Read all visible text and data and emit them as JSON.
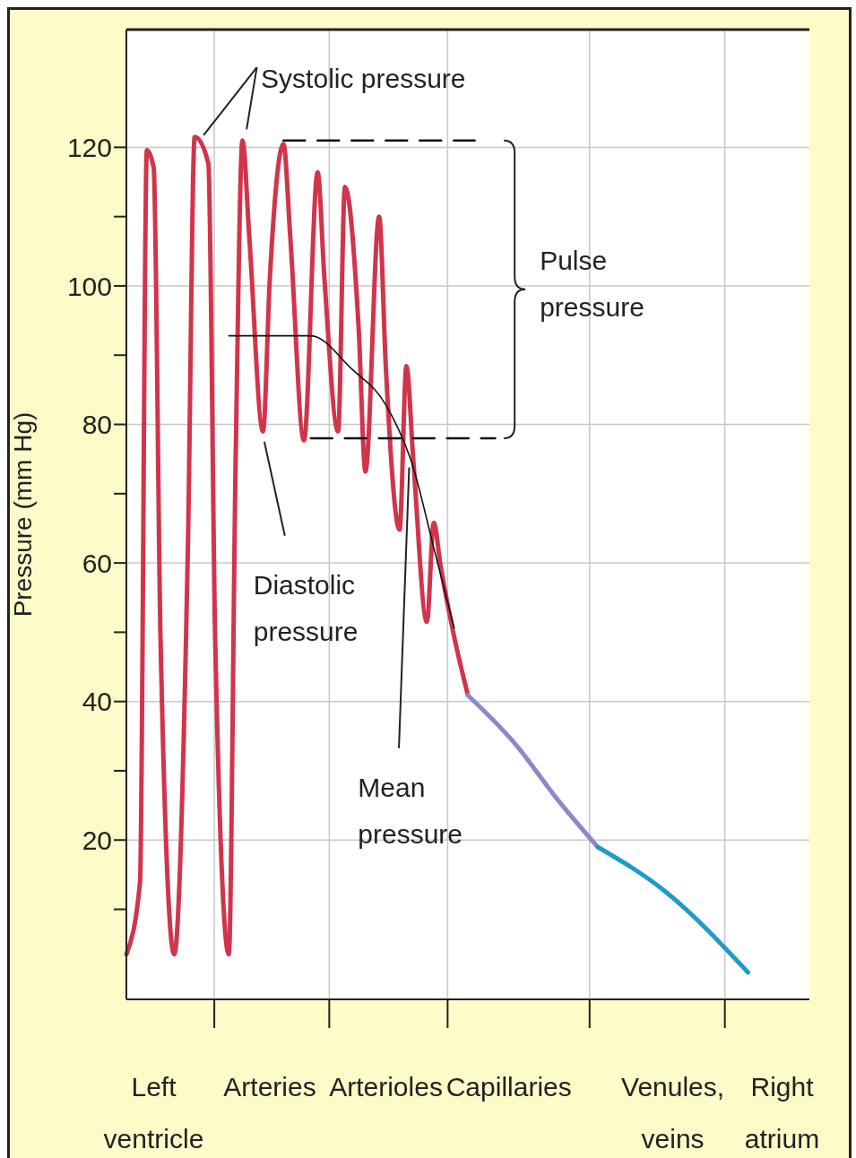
{
  "chart_data": {
    "type": "line",
    "ylabel": "Pressure (mm Hg)",
    "categories": [
      null,
      null,
      null,
      null,
      "Left ventricle",
      null,
      null,
      null,
      null,
      null,
      null,
      null,
      null,
      null,
      null,
      null,
      null,
      null,
      null,
      null,
      null,
      "Arteries",
      null,
      null,
      null,
      null,
      null,
      null,
      null,
      null,
      null,
      null,
      null,
      null,
      null,
      null,
      null,
      null,
      "Arterioles",
      null,
      null,
      null,
      null,
      null,
      null,
      null,
      null,
      null,
      null,
      null,
      null,
      null,
      null,
      null,
      null,
      null,
      "Capillaries",
      null,
      null,
      null,
      null,
      null,
      null,
      null,
      null,
      null,
      null,
      null,
      null,
      null,
      null,
      null,
      null,
      null,
      null,
      null,
      null,
      null,
      null,
      null,
      "Venules, veins",
      null,
      null,
      null,
      null,
      null,
      null,
      null,
      null,
      null,
      null,
      null,
      null,
      null,
      null,
      null,
      "Right atrium",
      null,
      null,
      null,
      null
    ],
    "ylim": [
      -3,
      137
    ],
    "yticks": [
      {
        "value": 10,
        "label": null
      },
      20,
      {
        "value": 30,
        "label": null
      },
      40,
      {
        "value": 50,
        "label": null
      },
      60,
      {
        "value": 70,
        "label": null
      },
      80,
      {
        "value": 90,
        "label": null
      },
      100,
      {
        "value": 110,
        "label": null
      },
      120
    ],
    "grid": true,
    "marker": "none",
    "line_style": "solid",
    "series": [
      {
        "color": "#d1344b",
        "values": [
          3.5,
          null,
          14,
          119.6,
          117,
          49,
          null,
          3.5,
          null,
          62,
          121.5,
          null,
          117.7,
          49,
          null,
          3.5,
          75,
          121,
          107,
          null,
          79,
          101,
          null,
          120.5,
          107,
          null,
          77.7,
          null,
          116.4,
          101,
          null,
          79,
          114.3,
          null,
          94,
          73.2,
          null,
          110,
          88,
          null,
          64.8,
          88.4,
          75,
          null,
          51.5,
          65.8,
          59.6,
          null,
          49.3,
          null,
          40.9,
          null,
          null,
          null,
          null,
          null,
          null,
          null,
          null,
          null,
          null,
          null,
          null,
          null,
          null,
          null,
          null,
          null,
          null,
          null,
          null,
          null,
          null,
          null,
          null,
          null,
          null,
          null,
          null,
          null,
          null,
          null,
          null,
          null,
          null,
          null,
          null,
          null,
          null,
          null,
          null,
          null,
          null,
          null,
          null,
          null,
          null,
          null,
          null,
          null,
          null
        ]
      },
      {
        "color": "#8c89c8",
        "values": [
          null,
          null,
          null,
          null,
          null,
          null,
          null,
          null,
          null,
          null,
          null,
          null,
          null,
          null,
          null,
          null,
          null,
          null,
          null,
          null,
          null,
          null,
          null,
          null,
          null,
          null,
          null,
          null,
          null,
          null,
          null,
          null,
          null,
          null,
          null,
          null,
          null,
          null,
          null,
          null,
          null,
          null,
          null,
          null,
          null,
          null,
          null,
          null,
          null,
          null,
          40.9,
          null,
          null,
          null,
          null,
          null,
          null,
          33.8,
          null,
          null,
          null,
          null,
          null,
          26,
          null,
          null,
          null,
          null,
          null,
          19,
          null,
          null,
          null,
          null,
          null,
          null,
          null,
          null,
          null,
          null,
          null,
          null,
          null,
          null,
          null,
          null,
          null,
          null,
          null,
          null,
          null,
          null,
          null,
          null,
          null,
          null,
          null,
          null,
          null,
          null,
          null
        ]
      },
      {
        "color": "#1e9cc6",
        "values": [
          null,
          null,
          null,
          null,
          null,
          null,
          null,
          null,
          null,
          null,
          null,
          null,
          null,
          null,
          null,
          null,
          null,
          null,
          null,
          null,
          null,
          null,
          null,
          null,
          null,
          null,
          null,
          null,
          null,
          null,
          null,
          null,
          null,
          null,
          null,
          null,
          null,
          null,
          null,
          null,
          null,
          null,
          null,
          null,
          null,
          null,
          null,
          null,
          null,
          null,
          null,
          null,
          null,
          null,
          null,
          null,
          null,
          null,
          null,
          null,
          null,
          null,
          null,
          null,
          null,
          null,
          null,
          null,
          null,
          19,
          null,
          null,
          null,
          null,
          null,
          null,
          null,
          null,
          null,
          12.5,
          null,
          null,
          null,
          null,
          null,
          null,
          null,
          null,
          null,
          null,
          null,
          0.9,
          null,
          null,
          null,
          null,
          null,
          null,
          null,
          null,
          null
        ]
      },
      {
        "color": "#111111",
        "values": [
          null,
          null,
          null,
          null,
          null,
          null,
          null,
          null,
          null,
          null,
          null,
          null,
          null,
          null,
          null,
          92.8,
          null,
          null,
          null,
          null,
          null,
          null,
          null,
          null,
          null,
          null,
          null,
          92.8,
          null,
          null,
          null,
          null,
          null,
          88,
          null,
          null,
          null,
          null,
          82.8,
          null,
          null,
          null,
          73.8,
          null,
          null,
          62.2,
          null,
          null,
          50.6,
          null,
          null,
          null,
          null,
          null,
          null,
          null,
          null,
          null,
          null,
          null,
          null,
          null,
          null,
          null,
          null,
          null,
          null,
          null,
          null,
          null,
          null,
          null,
          null,
          null,
          null,
          null,
          null,
          null,
          null,
          null,
          null,
          null,
          null,
          null,
          null,
          null,
          null,
          null,
          null,
          null,
          null,
          null,
          null,
          null,
          null,
          null,
          null,
          null,
          null,
          null,
          null
        ]
      },
      {
        "color": "#111111",
        "line_style": "dashed",
        "values": [
          null,
          null,
          null,
          null,
          null,
          null,
          null,
          null,
          null,
          null,
          null,
          null,
          null,
          null,
          null,
          null,
          null,
          null,
          null,
          null,
          null,
          null,
          null,
          121,
          null,
          null,
          null,
          null,
          null,
          null,
          null,
          null,
          null,
          null,
          null,
          null,
          null,
          null,
          null,
          null,
          null,
          null,
          null,
          null,
          null,
          null,
          null,
          null,
          null,
          null,
          null,
          121,
          null,
          null,
          null,
          null,
          null,
          null,
          null,
          null,
          null,
          null,
          null,
          null,
          null,
          null,
          null,
          null,
          null,
          null,
          null,
          null,
          null,
          null,
          null,
          null,
          null,
          null,
          null,
          null,
          null,
          null,
          null,
          null,
          null,
          null,
          null,
          null,
          null,
          null,
          null,
          null,
          null,
          null,
          null,
          null,
          null,
          null,
          null,
          null,
          null
        ]
      },
      {
        "color": "#111111",
        "line_style": "dashed",
        "values": [
          null,
          null,
          null,
          null,
          null,
          null,
          null,
          null,
          null,
          null,
          null,
          null,
          null,
          null,
          null,
          null,
          null,
          null,
          null,
          null,
          null,
          null,
          null,
          null,
          null,
          null,
          null,
          78,
          null,
          null,
          null,
          null,
          null,
          null,
          null,
          null,
          null,
          null,
          null,
          null,
          null,
          null,
          null,
          null,
          null,
          null,
          null,
          null,
          null,
          null,
          null,
          null,
          null,
          null,
          78,
          null,
          null,
          null,
          null,
          null,
          null,
          null,
          null,
          null,
          null,
          null,
          null,
          null,
          null,
          null,
          null,
          null,
          null,
          null,
          null,
          null,
          null,
          null,
          null,
          null,
          null,
          null,
          null,
          null,
          null,
          null,
          null,
          null,
          null,
          null,
          null,
          null,
          null,
          null,
          null,
          null,
          null,
          null,
          null,
          null,
          null
        ]
      }
    ],
    "annotations": [
      "Systolic pressure",
      "Diastolic pressure",
      {
        "text": "Mean pressure",
        "y": 73.8
      },
      "Pulse pressure"
    ]
  }
}
